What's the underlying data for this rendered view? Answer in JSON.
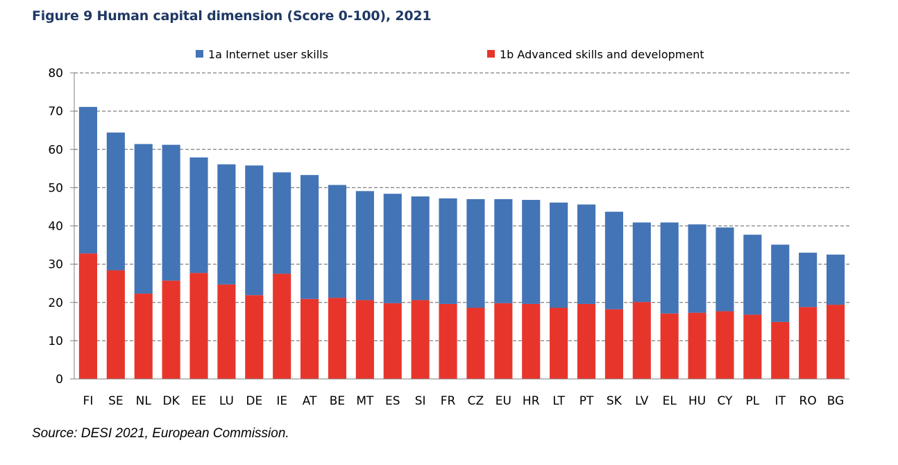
{
  "figure": {
    "title": "Figure 9 Human capital dimension (Score 0-100), 2021",
    "source": "Source: DESI 2021, European Commission."
  },
  "chart_data": {
    "type": "bar",
    "stacked": true,
    "categories": [
      "FI",
      "SE",
      "NL",
      "DK",
      "EE",
      "LU",
      "DE",
      "IE",
      "AT",
      "BE",
      "MT",
      "ES",
      "SI",
      "FR",
      "CZ",
      "EU",
      "HR",
      "LT",
      "PT",
      "SK",
      "LV",
      "EL",
      "HU",
      "CY",
      "PL",
      "IT",
      "RO",
      "BG"
    ],
    "series": [
      {
        "name": "1b Advanced skills and development",
        "color": "#e8352b",
        "values": [
          32.8,
          28.4,
          22.3,
          25.7,
          27.7,
          24.7,
          21.9,
          27.5,
          20.9,
          21.2,
          20.6,
          19.8,
          20.6,
          19.6,
          18.6,
          19.8,
          19.6,
          18.6,
          19.6,
          18.2,
          20.1,
          17.1,
          17.3,
          17.7,
          16.8,
          14.9,
          18.8,
          19.4
        ]
      },
      {
        "name": "1a Internet user skills",
        "color": "#4374b6",
        "values": [
          38.3,
          36.0,
          39.1,
          35.5,
          30.2,
          31.4,
          33.9,
          26.5,
          32.4,
          29.5,
          28.5,
          28.6,
          27.1,
          27.6,
          28.4,
          27.2,
          27.2,
          27.5,
          26.0,
          25.5,
          20.8,
          23.8,
          23.1,
          21.9,
          20.9,
          20.2,
          14.2,
          13.1
        ]
      }
    ],
    "ylim": [
      0,
      80
    ],
    "yticks": [
      0,
      10,
      20,
      30,
      40,
      50,
      60,
      70,
      80
    ],
    "grid": true,
    "grid_style": "dashed",
    "legend_position": "top"
  }
}
